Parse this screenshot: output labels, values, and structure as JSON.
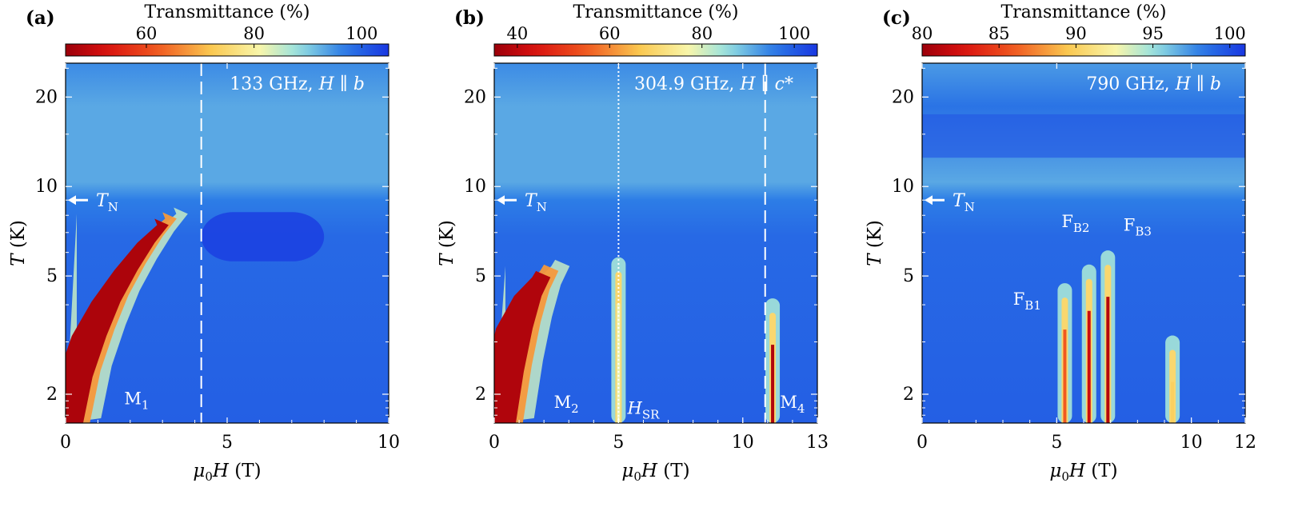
{
  "chart_data": [
    {
      "type": "heatmap",
      "panel_label": "(a)",
      "annotation": {
        "freq": "133 GHz, ",
        "H": "H",
        "par": " ∥ ",
        "dir": "b"
      },
      "colorbar": {
        "title": "Transmittance (%)",
        "range": [
          45,
          105
        ],
        "ticks": [
          60,
          80,
          100
        ]
      },
      "xlabel": {
        "mu": "μ",
        "sub": "0",
        "H": "H",
        "unit": " (T)"
      },
      "ylabel": {
        "T": "T",
        "unit": " (K)"
      },
      "xlim": [
        0,
        10
      ],
      "xticks": [
        0,
        5,
        10
      ],
      "ylim": [
        1.6,
        26
      ],
      "y_scale": "log",
      "yticks": [
        2,
        5,
        10,
        20
      ],
      "tn_label": {
        "T": "T",
        "sub": "N",
        "value": 9.0
      },
      "mode_labels": [
        {
          "main": "M",
          "sub": "1",
          "x": 2.2,
          "T": 1.85
        }
      ],
      "vlines": [
        {
          "x": 4.2,
          "style": "dashed"
        }
      ],
      "features": [
        {
          "kind": "absorption",
          "path": [
            [
              0.2,
              1.6
            ],
            [
              0.6,
              2.4
            ],
            [
              1.1,
              3.3
            ],
            [
              1.6,
              4.3
            ],
            [
              2.2,
              5.5
            ],
            [
              2.8,
              6.8
            ],
            [
              3.3,
              7.8
            ]
          ],
          "min_transmittance": 47
        }
      ]
    },
    {
      "type": "heatmap",
      "panel_label": "(b)",
      "annotation": {
        "freq": "304.9 GHz, ",
        "H": "H",
        "par": " ∥ ",
        "dir": "c*"
      },
      "colorbar": {
        "title": "Transmittance (%)",
        "range": [
          35,
          105
        ],
        "ticks": [
          40,
          60,
          80,
          100
        ]
      },
      "xlabel": {
        "mu": "μ",
        "sub": "0",
        "H": "H",
        "unit": " (T)"
      },
      "ylabel": {
        "T": "T",
        "unit": " (K)"
      },
      "xlim": [
        0,
        13
      ],
      "xticks": [
        0,
        5,
        10,
        13
      ],
      "ylim": [
        1.6,
        26
      ],
      "y_scale": "log",
      "yticks": [
        2,
        5,
        10,
        20
      ],
      "tn_label": {
        "T": "T",
        "sub": "N",
        "value": 9.0
      },
      "mode_labels": [
        {
          "main": "M",
          "sub": "2",
          "x": 2.9,
          "T": 1.8
        },
        {
          "main": "H",
          "sub": "SR",
          "x": 6.0,
          "T": 1.72,
          "italic": true
        },
        {
          "main": "M",
          "sub": "4",
          "x": 12.0,
          "T": 1.8
        }
      ],
      "vlines": [
        {
          "x": 5.0,
          "style": "dotted"
        },
        {
          "x": 10.9,
          "style": "dashed"
        }
      ],
      "features": [
        {
          "kind": "absorption",
          "path": [
            [
              0.3,
              1.6
            ],
            [
              0.8,
              2.5
            ],
            [
              1.3,
              3.5
            ],
            [
              1.8,
              4.5
            ],
            [
              2.3,
              5.2
            ]
          ],
          "min_transmittance": 38
        },
        {
          "kind": "line",
          "x": 5.0,
          "T_max": 5.5,
          "min_transmittance": 78
        },
        {
          "kind": "line",
          "x": 11.2,
          "T_max": 4.0,
          "min_transmittance": 38
        }
      ]
    },
    {
      "type": "heatmap",
      "panel_label": "(c)",
      "annotation": {
        "freq": "790 GHz, ",
        "H": "H",
        "par": " ∥ ",
        "dir": "b"
      },
      "colorbar": {
        "title": "Transmittance (%)",
        "range": [
          80,
          101
        ],
        "ticks": [
          80,
          85,
          90,
          95,
          100
        ]
      },
      "xlabel": {
        "mu": "μ",
        "sub": "0",
        "H": "H",
        "unit": " (T)"
      },
      "ylabel": {
        "T": "T",
        "unit": " (K)"
      },
      "xlim": [
        0,
        12
      ],
      "xticks": [
        0,
        5,
        10,
        12
      ],
      "ylim": [
        1.6,
        26
      ],
      "y_scale": "log",
      "yticks": [
        2,
        5,
        10,
        20
      ],
      "tn_label": {
        "T": "T",
        "sub": "N",
        "value": 9.0
      },
      "mode_labels": [
        {
          "main": "F",
          "sub": "B1",
          "x": 3.9,
          "T": 4.0
        },
        {
          "main": "F",
          "sub": "B2",
          "x": 5.7,
          "T": 7.3
        },
        {
          "main": "F",
          "sub": "B3",
          "x": 8.0,
          "T": 7.1
        }
      ],
      "vlines": [],
      "features": [
        {
          "kind": "line",
          "x": 5.3,
          "T_max": 4.5,
          "min_transmittance": 86
        },
        {
          "kind": "line",
          "x": 6.2,
          "T_max": 5.2,
          "min_transmittance": 82
        },
        {
          "kind": "line",
          "x": 6.9,
          "T_max": 5.8,
          "min_transmittance": 81
        },
        {
          "kind": "line",
          "x": 9.3,
          "T_max": 3.0,
          "min_transmittance": 90
        }
      ]
    }
  ]
}
